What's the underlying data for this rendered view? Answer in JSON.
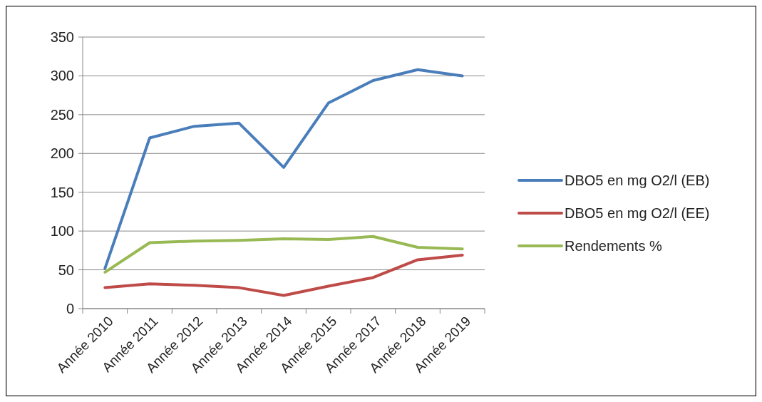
{
  "chart_data": {
    "type": "line",
    "categories": [
      "Année 2010",
      "Année 2011",
      "Année 2012",
      "Année 2013",
      "Année 2014",
      "Année 2015",
      "Année 2017",
      "Année 2018",
      "Année 2019"
    ],
    "series": [
      {
        "name": "DBO5 en mg O2/l (EB)",
        "color": "#4a7ebb",
        "values": [
          52,
          220,
          235,
          239,
          182,
          265,
          294,
          308,
          300
        ]
      },
      {
        "name": "DBO5 en mg O2/l (EE)",
        "color": "#be4b48",
        "values": [
          27,
          32,
          30,
          27,
          17,
          29,
          40,
          63,
          69
        ]
      },
      {
        "name": "Rendements %",
        "color": "#98b954",
        "values": [
          47,
          85,
          87,
          88,
          90,
          89,
          93,
          79,
          77
        ]
      }
    ],
    "ylim": [
      0,
      350
    ],
    "yticks": [
      0,
      50,
      100,
      150,
      200,
      250,
      300,
      350
    ],
    "grid": "y",
    "legend": "right",
    "marker": "none",
    "line_style": "solid"
  }
}
